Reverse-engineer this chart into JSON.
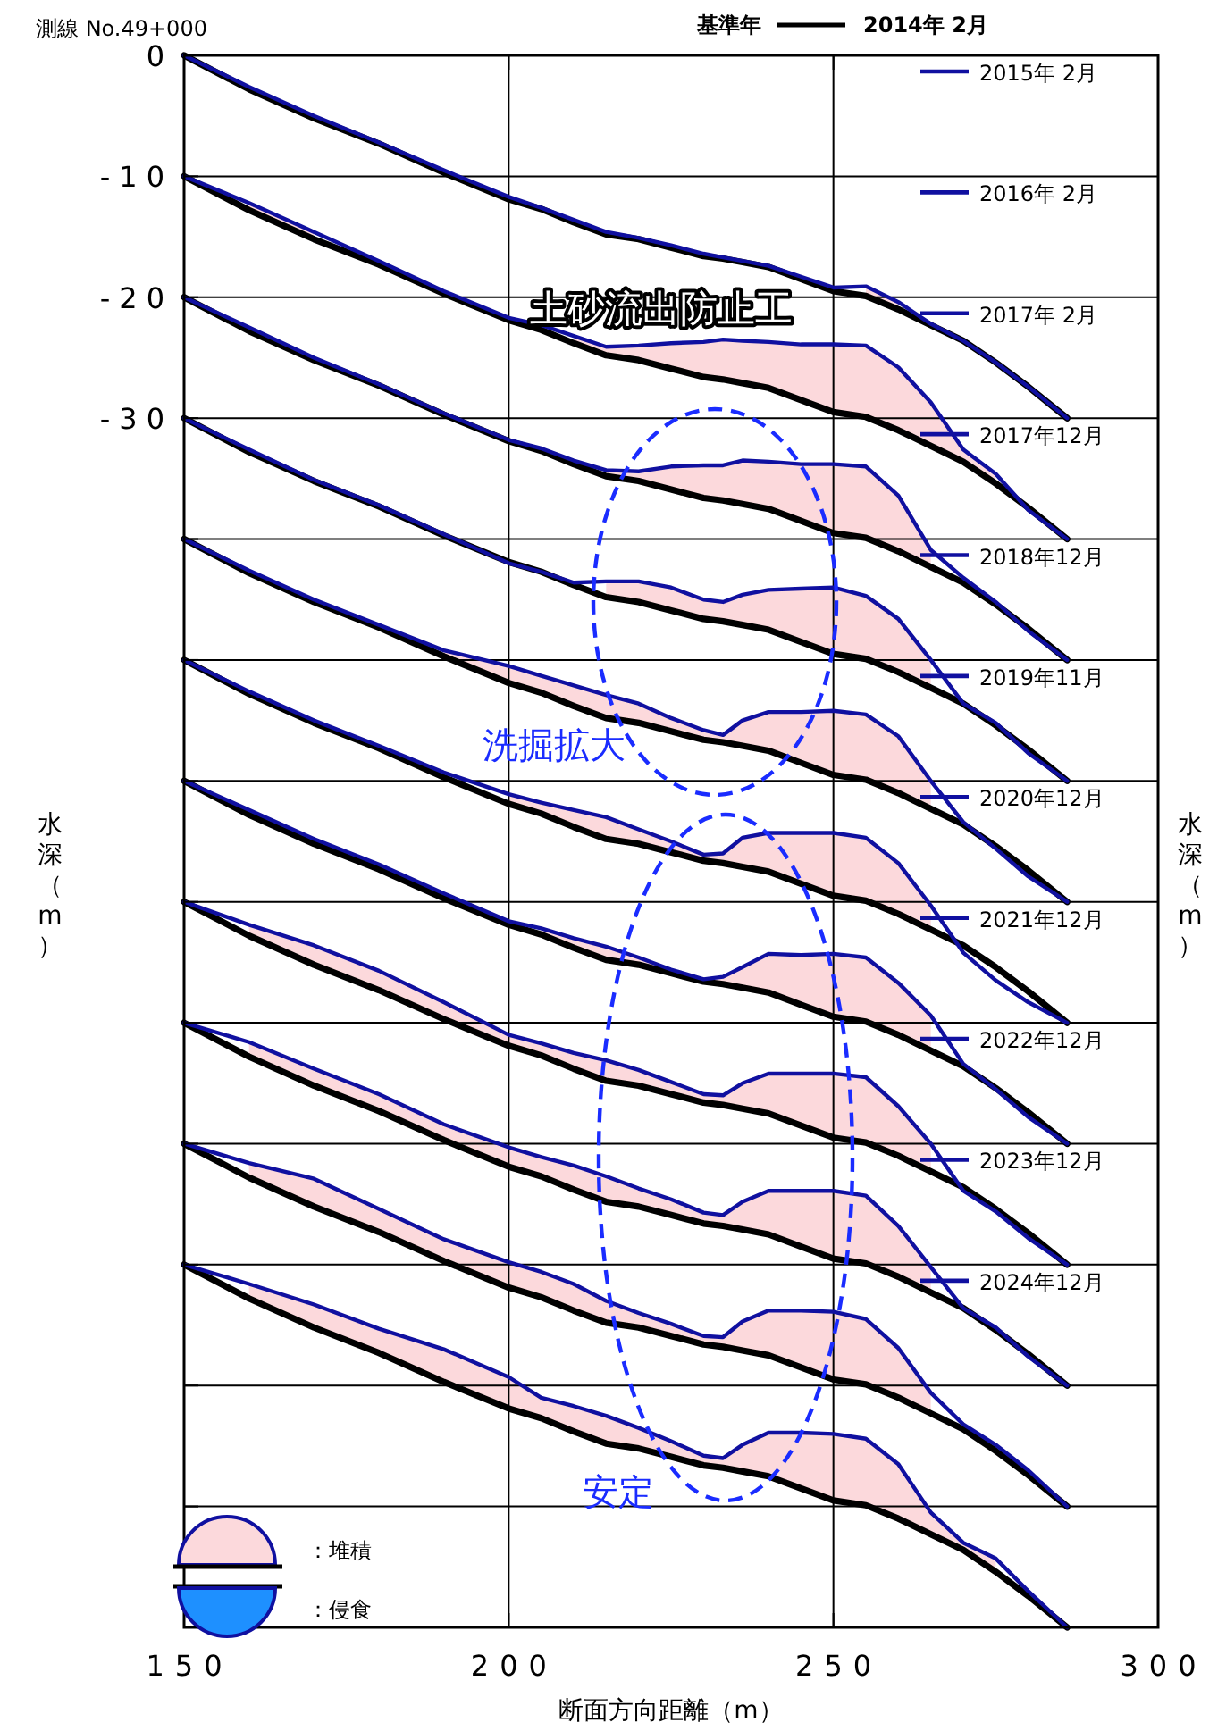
{
  "chart_data": {
    "type": "line",
    "title": "測線 No.49+000",
    "xlabel": "断面方向距離（m）",
    "ylabel": "水深（m）",
    "y2label": "水深（m）",
    "legend_title": "基準年",
    "legend": "top right",
    "grid": true,
    "annotations": [
      "土砂流出防止工",
      "洗掘拡大",
      "安定",
      "：堆積",
      "：侵食"
    ],
    "xlim": [
      150,
      300
    ],
    "ylim": [
      -130,
      0
    ],
    "xticks": [
      150,
      200,
      250,
      300
    ],
    "yticks": [
      0,
      -10,
      -20,
      -30,
      {
        "value": -40,
        "label": null
      },
      {
        "value": -50,
        "label": null
      },
      {
        "value": -60,
        "label": null
      },
      {
        "value": -70,
        "label": null
      },
      {
        "value": -80,
        "label": null
      },
      {
        "value": -90,
        "label": null
      },
      {
        "value": -100,
        "label": null
      },
      {
        "value": -110,
        "label": null
      },
      {
        "value": -120,
        "label": null
      },
      {
        "value": -130,
        "label": null
      }
    ],
    "x": [
      150,
      160,
      170,
      180,
      190,
      200,
      205,
      210,
      215,
      220,
      225,
      230,
      233,
      236,
      240,
      245,
      250,
      255,
      260,
      265,
      270,
      275,
      280,
      286
    ],
    "series": [
      {
        "name": "2014年 2月",
        "color": "#000000",
        "values": [
          0,
          -2.8,
          -5.2,
          -7.3,
          -9.7,
          -11.9,
          -12.7,
          -13.8,
          -14.8,
          -15.2,
          -15.9,
          -16.6,
          -16.8,
          -17.1,
          -17.5,
          -18.5,
          -19.5,
          -19.9,
          -21,
          -22.3,
          -23.6,
          -25.4,
          -27.4,
          -30
        ]
      },
      {
        "name": "2015年 2月",
        "color": "#1010a0",
        "values": [
          0,
          -2.6,
          -5,
          -7.2,
          -9.5,
          -11.7,
          -12.6,
          -13.6,
          -14.6,
          -15.1,
          -15.7,
          -16.4,
          -16.7,
          -17,
          -17.4,
          -18.3,
          -19.2,
          -19.1,
          -20.4,
          -22.2,
          -23.6,
          -25.4,
          -27.4,
          -30
        ],
        "lower": [
          null,
          null,
          null,
          null,
          null,
          null,
          null,
          null,
          null,
          null,
          null,
          null,
          null,
          null,
          null,
          null,
          null,
          -19.9,
          -21,
          null,
          null,
          null,
          null,
          null
        ],
        "upper": [
          null,
          null,
          null,
          null,
          null,
          null,
          null,
          null,
          null,
          null,
          null,
          null,
          null,
          null,
          null,
          null,
          null,
          -19.1,
          -20.4,
          null,
          null,
          null,
          null,
          null
        ]
      },
      {
        "color": "#000000",
        "values": [
          -10,
          -12.8,
          -15.2,
          -17.3,
          -19.7,
          -21.9,
          -22.7,
          -23.8,
          -24.8,
          -25.2,
          -25.9,
          -26.6,
          -26.8,
          -27.1,
          -27.5,
          -28.5,
          -29.5,
          -29.9,
          -31,
          -32.3,
          -33.6,
          -35.4,
          -37.4,
          -40
        ]
      },
      {
        "name": "2016年 2月",
        "color": "#1010a0",
        "values": [
          -10,
          -12.2,
          -14.6,
          -17,
          -19.5,
          -21.7,
          -22.3,
          -23.2,
          -24.1,
          -24,
          -23.8,
          -23.7,
          -23.5,
          -23.6,
          -23.7,
          -23.9,
          -23.9,
          -24,
          -25.8,
          -28.7,
          -32.6,
          -34.6,
          -37.6,
          -40
        ],
        "lower": [
          null,
          -12.8,
          -15.2,
          null,
          null,
          null,
          null,
          -23.8,
          -24.8,
          -25.2,
          -25.9,
          -26.6,
          -26.8,
          -27.1,
          -27.5,
          -28.5,
          -29.5,
          -29.9,
          -31,
          -32.3,
          -33.6,
          -35.4,
          null,
          null
        ],
        "upper": [
          null,
          -12.2,
          -14.6,
          null,
          null,
          null,
          null,
          -23.2,
          -24.1,
          -24,
          -23.8,
          -23.7,
          -23.5,
          -23.6,
          -23.7,
          -23.9,
          -23.9,
          -24,
          -25.8,
          -28.7,
          -32.6,
          -34.6,
          null,
          null
        ]
      },
      {
        "color": "#000000",
        "values": [
          -20,
          -22.8,
          -25.2,
          -27.3,
          -29.7,
          -31.9,
          -32.7,
          -33.8,
          -34.8,
          -35.2,
          -35.9,
          -36.6,
          -36.8,
          -37.1,
          -37.5,
          -38.5,
          -39.5,
          -39.9,
          -41,
          -42.3,
          -43.6,
          -45.4,
          -47.4,
          -50
        ]
      },
      {
        "name": "2017年 2月",
        "color": "#1010a0",
        "values": [
          -20,
          -22.5,
          -25,
          -27.2,
          -29.6,
          -31.8,
          -32.5,
          -33.5,
          -34.3,
          -34.4,
          -34,
          -33.9,
          -33.9,
          -33.5,
          -33.6,
          -33.8,
          -33.8,
          -34,
          -36.4,
          -40.9,
          -43.2,
          -45.2,
          -47.6,
          -50
        ],
        "lower": [
          null,
          null,
          null,
          null,
          null,
          null,
          null,
          null,
          -34.8,
          -35.2,
          -35.9,
          -36.6,
          -36.8,
          -37.1,
          -37.5,
          -38.5,
          -39.5,
          -39.9,
          -41,
          -42.3,
          null,
          null,
          null,
          null
        ],
        "upper": [
          null,
          null,
          null,
          null,
          null,
          null,
          null,
          null,
          -34.3,
          -34.4,
          -34,
          -33.9,
          -33.9,
          -33.5,
          -33.6,
          -33.8,
          -33.8,
          -34,
          -36.4,
          -40.9,
          null,
          null,
          null,
          null
        ]
      },
      {
        "color": "#000000",
        "values": [
          -30,
          -32.8,
          -35.2,
          -37.3,
          -39.7,
          -41.9,
          -42.7,
          -43.8,
          -44.8,
          -45.2,
          -45.9,
          -46.6,
          -46.8,
          -47.1,
          -47.5,
          -48.5,
          -49.5,
          -49.9,
          -51,
          -52.3,
          -53.6,
          -55.4,
          -57.4,
          -60
        ]
      },
      {
        "name": "2017年12月",
        "color": "#1010a0",
        "values": [
          -30,
          -32.6,
          -35.1,
          -37.2,
          -39.6,
          -42,
          -42.7,
          -43.6,
          -43.5,
          -43.5,
          -44,
          -45,
          -45.2,
          -44.6,
          -44.2,
          -44.1,
          -44,
          -44.7,
          -46.6,
          -50,
          -53.6,
          -55.2,
          -57.7,
          -60
        ],
        "lower": [
          null,
          null,
          null,
          null,
          null,
          null,
          null,
          null,
          -44.8,
          -45.2,
          -45.9,
          -46.6,
          -46.8,
          -47.1,
          -47.5,
          -48.5,
          -49.5,
          -49.9,
          -51,
          -52.3,
          null,
          null,
          null,
          null
        ],
        "upper": [
          null,
          null,
          null,
          null,
          null,
          null,
          null,
          null,
          -43.5,
          -43.5,
          -44,
          -45,
          -45.2,
          -44.6,
          -44.2,
          -44.1,
          -44,
          -44.7,
          -46.6,
          -50,
          null,
          null,
          null,
          null
        ]
      },
      {
        "color": "#000000",
        "values": [
          -40,
          -42.8,
          -45.2,
          -47.3,
          -49.7,
          -51.9,
          -52.7,
          -53.8,
          -54.8,
          -55.2,
          -55.9,
          -56.6,
          -56.8,
          -57.1,
          -57.5,
          -58.5,
          -59.5,
          -59.9,
          -61,
          -62.3,
          -63.6,
          -65.4,
          -67.4,
          -70
        ]
      },
      {
        "name": "2018年12月",
        "color": "#1010a0",
        "values": [
          -40,
          -42.6,
          -45,
          -47.1,
          -49.2,
          -50.5,
          -51.3,
          -52.1,
          -52.9,
          -53.6,
          -54.8,
          -55.8,
          -56.2,
          -55,
          -54.3,
          -54.3,
          -54.2,
          -54.5,
          -56.3,
          -60,
          -63.4,
          -65.6,
          -67.9,
          -70
        ],
        "lower": [
          null,
          null,
          null,
          null,
          -49.7,
          -51.9,
          -52.7,
          -53.8,
          -54.8,
          -55.2,
          -55.9,
          -56.6,
          -56.8,
          -57.1,
          -57.5,
          -58.5,
          -59.5,
          -59.9,
          -61,
          -62.3,
          null,
          null,
          null,
          null
        ],
        "upper": [
          null,
          null,
          null,
          null,
          -49.2,
          -50.5,
          -51.3,
          -52.1,
          -52.9,
          -53.6,
          -54.8,
          -55.8,
          -56.2,
          -55,
          -54.3,
          -54.3,
          -54.2,
          -54.5,
          -56.3,
          -60,
          null,
          null,
          null,
          null
        ]
      },
      {
        "color": "#000000",
        "values": [
          -50,
          -52.8,
          -55.2,
          -57.3,
          -59.7,
          -61.9,
          -62.7,
          -63.8,
          -64.8,
          -65.2,
          -65.9,
          -66.6,
          -66.8,
          -67.1,
          -67.5,
          -68.5,
          -69.5,
          -69.9,
          -71,
          -72.3,
          -73.6,
          -75.4,
          -77.4,
          -80
        ]
      },
      {
        "name": "2019年11月",
        "color": "#1010a0",
        "values": [
          -50,
          -52.6,
          -55,
          -57.1,
          -59.3,
          -61.1,
          -61.8,
          -62.4,
          -63,
          -64,
          -65,
          -66.1,
          -66,
          -64.7,
          -64.3,
          -64.3,
          -64.3,
          -64.7,
          -66.8,
          -70.3,
          -74.2,
          -76.5,
          -78.3,
          -80
        ],
        "lower": [
          null,
          null,
          null,
          null,
          null,
          -61.9,
          -62.7,
          -63.8,
          -64.8,
          -65.2,
          -65.9,
          -66.6,
          -66.8,
          -67.1,
          -67.5,
          -68.5,
          -69.5,
          -69.9,
          -71,
          -72.3,
          null,
          null,
          null,
          null
        ],
        "upper": [
          null,
          null,
          null,
          null,
          null,
          -61.1,
          -61.8,
          -62.4,
          -63,
          -64,
          -65,
          -66.1,
          -66,
          -64.7,
          -64.3,
          -64.3,
          -64.3,
          -64.7,
          -66.8,
          -70.3,
          null,
          null,
          null,
          null
        ]
      },
      {
        "color": "#000000",
        "values": [
          -60,
          -62.8,
          -65.2,
          -67.3,
          -69.7,
          -71.9,
          -72.7,
          -73.8,
          -74.8,
          -75.2,
          -75.9,
          -76.6,
          -76.8,
          -77.1,
          -77.5,
          -78.5,
          -79.5,
          -79.9,
          -81,
          -82.3,
          -83.6,
          -85.4,
          -87.4,
          -90
        ]
      },
      {
        "name": "2020年12月",
        "color": "#1010a0",
        "values": [
          -60,
          -62.4,
          -64.8,
          -66.9,
          -69.3,
          -71.6,
          -72.2,
          -73,
          -73.7,
          -74.6,
          -75.6,
          -76.4,
          -76.2,
          -75.4,
          -74.3,
          -74.4,
          -74.3,
          -74.6,
          -76.7,
          -79.4,
          -83.4,
          -85.5,
          -87.8,
          -90
        ],
        "lower": [
          null,
          null,
          null,
          null,
          null,
          null,
          -72.7,
          -73.8,
          -74.8,
          -75.2,
          -75.9,
          -76.6,
          -76.8,
          -77.1,
          -77.5,
          -78.5,
          -79.5,
          -79.9,
          -81,
          -82.3,
          null,
          null,
          null,
          null
        ],
        "upper": [
          null,
          null,
          null,
          null,
          null,
          null,
          -72.2,
          -73,
          -73.7,
          -74.6,
          -75.6,
          -76.4,
          -76.2,
          -75.4,
          -74.3,
          -74.4,
          -74.3,
          -74.6,
          -76.7,
          -79.4,
          null,
          null,
          null,
          null
        ]
      },
      {
        "color": "#000000",
        "values": [
          -70,
          -72.8,
          -75.2,
          -77.3,
          -79.7,
          -81.9,
          -82.7,
          -83.8,
          -84.8,
          -85.2,
          -85.9,
          -86.6,
          -86.8,
          -87.1,
          -87.5,
          -88.5,
          -89.5,
          -89.9,
          -91,
          -92.3,
          -93.6,
          -95.4,
          -97.4,
          -100
        ]
      },
      {
        "name": "2021年12月",
        "color": "#1010a0",
        "values": [
          -70,
          -71.9,
          -73.6,
          -75.7,
          -78.3,
          -81,
          -81.7,
          -82.5,
          -83.1,
          -83.9,
          -84.9,
          -85.9,
          -86,
          -85,
          -84.2,
          -84.2,
          -84.2,
          -84.5,
          -86.9,
          -90,
          -93.9,
          -95.6,
          -97.8,
          -100
        ],
        "lower": [
          null,
          -72.8,
          -75.2,
          -77.3,
          -79.7,
          -81.9,
          -82.7,
          -83.8,
          -84.8,
          -85.2,
          -85.9,
          -86.6,
          -86.8,
          -87.1,
          -87.5,
          -88.5,
          -89.5,
          -89.9,
          -91,
          -92.3,
          null,
          null,
          null,
          null
        ],
        "upper": [
          null,
          -71.9,
          -73.6,
          -75.7,
          -78.3,
          -81,
          -81.7,
          -82.5,
          -83.1,
          -83.9,
          -84.9,
          -85.9,
          -86,
          -85,
          -84.2,
          -84.2,
          -84.2,
          -84.5,
          -86.9,
          -90,
          null,
          null,
          null,
          null
        ]
      },
      {
        "color": "#000000",
        "values": [
          -80,
          -82.8,
          -85.2,
          -87.3,
          -89.7,
          -91.9,
          -92.7,
          -93.8,
          -94.8,
          -95.2,
          -95.9,
          -96.6,
          -96.8,
          -97.1,
          -97.5,
          -98.5,
          -99.5,
          -99.9,
          -101,
          -102.3,
          -103.6,
          -105.4,
          -107.4,
          -110
        ]
      },
      {
        "name": "2022年12月",
        "color": "#1010a0",
        "values": [
          -80,
          -81.6,
          -83.8,
          -85.9,
          -88.4,
          -90.3,
          -91.1,
          -91.8,
          -92.7,
          -93.7,
          -94.6,
          -95.7,
          -95.9,
          -94.8,
          -93.9,
          -93.9,
          -93.9,
          -94.3,
          -96.8,
          -100.2,
          -103.6,
          -105.2,
          -107.6,
          -110
        ],
        "lower": [
          null,
          -82.8,
          -85.2,
          -87.3,
          -89.7,
          -91.9,
          -92.7,
          -93.8,
          -94.8,
          -95.2,
          -95.9,
          -96.6,
          -96.8,
          -97.1,
          -97.5,
          -98.5,
          -99.5,
          -99.9,
          -101,
          -102.3,
          null,
          null,
          null,
          null
        ],
        "upper": [
          null,
          -81.6,
          -83.8,
          -85.9,
          -88.4,
          -90.3,
          -91.1,
          -91.8,
          -92.7,
          -93.7,
          -94.6,
          -95.7,
          -95.9,
          -94.8,
          -93.9,
          -93.9,
          -93.9,
          -94.3,
          -96.8,
          -100.2,
          null,
          null,
          null,
          null
        ]
      },
      {
        "color": "#000000",
        "values": [
          -90,
          -92.8,
          -95.2,
          -97.3,
          -99.7,
          -101.9,
          -102.7,
          -103.8,
          -104.8,
          -105.2,
          -105.9,
          -106.6,
          -106.8,
          -107.1,
          -107.5,
          -108.5,
          -109.5,
          -109.9,
          -111,
          -112.3,
          -113.6,
          -115.4,
          -117.4,
          -120
        ]
      },
      {
        "name": "2023年12月",
        "color": "#1010a0",
        "values": [
          -90,
          -91.6,
          -92.9,
          -95.4,
          -97.9,
          -99.8,
          -100.6,
          -101.6,
          -103,
          -104,
          -104.9,
          -105.9,
          -106,
          -104.7,
          -103.8,
          -103.8,
          -103.9,
          -104.5,
          -106.9,
          -110.6,
          -113.2,
          -114.9,
          -117,
          -120
        ],
        "lower": [
          null,
          -92.8,
          -95.2,
          -97.3,
          -99.7,
          -101.9,
          -102.7,
          -103.8,
          -104.8,
          -105.2,
          -105.9,
          -106.6,
          -106.8,
          -107.1,
          -107.5,
          -108.5,
          -109.5,
          -109.9,
          -111,
          -112.3,
          null,
          null,
          null,
          null
        ],
        "upper": [
          null,
          -91.6,
          -92.9,
          -95.4,
          -97.9,
          -99.8,
          -100.6,
          -101.6,
          -103,
          -104,
          -104.9,
          -105.9,
          -106,
          -104.7,
          -103.8,
          -103.8,
          -103.9,
          -104.5,
          -106.9,
          -110.6,
          null,
          null,
          null,
          null
        ]
      },
      {
        "color": "#000000",
        "values": [
          -100,
          -102.8,
          -105.2,
          -107.3,
          -109.7,
          -111.9,
          -112.7,
          -113.8,
          -114.8,
          -115.2,
          -115.9,
          -116.6,
          -116.8,
          -117.1,
          -117.5,
          -118.5,
          -119.5,
          -119.9,
          -121,
          -122.3,
          -123.6,
          -125.4,
          -127.4,
          -130
        ]
      },
      {
        "name": "2024年12月",
        "color": "#1010a0",
        "values": [
          -100,
          -101.6,
          -103.3,
          -105.3,
          -107,
          -109.3,
          -111,
          -111.7,
          -112.5,
          -113.5,
          -114.6,
          -115.8,
          -116,
          -114.9,
          -113.9,
          -113.9,
          -114,
          -114.4,
          -116.5,
          -120.5,
          -123,
          -124.3,
          -127,
          -130
        ],
        "lower": [
          null,
          -102.8,
          -105.2,
          -107.3,
          -109.7,
          -111.9,
          -112.7,
          -113.8,
          -114.8,
          -115.2,
          -115.9,
          -116.6,
          -116.8,
          -117.1,
          -117.5,
          -118.5,
          -119.5,
          -119.9,
          -121,
          -122.3,
          -123.6,
          -125.4,
          null,
          null
        ],
        "upper": [
          null,
          -101.6,
          -103.3,
          -105.3,
          -107,
          -109.3,
          -111,
          -111.7,
          -112.5,
          -113.5,
          -114.6,
          -115.8,
          -116,
          -114.9,
          -113.9,
          -113.9,
          -114,
          -114.4,
          -116.5,
          -120.5,
          -123,
          -124.3,
          null,
          null
        ]
      }
    ]
  }
}
